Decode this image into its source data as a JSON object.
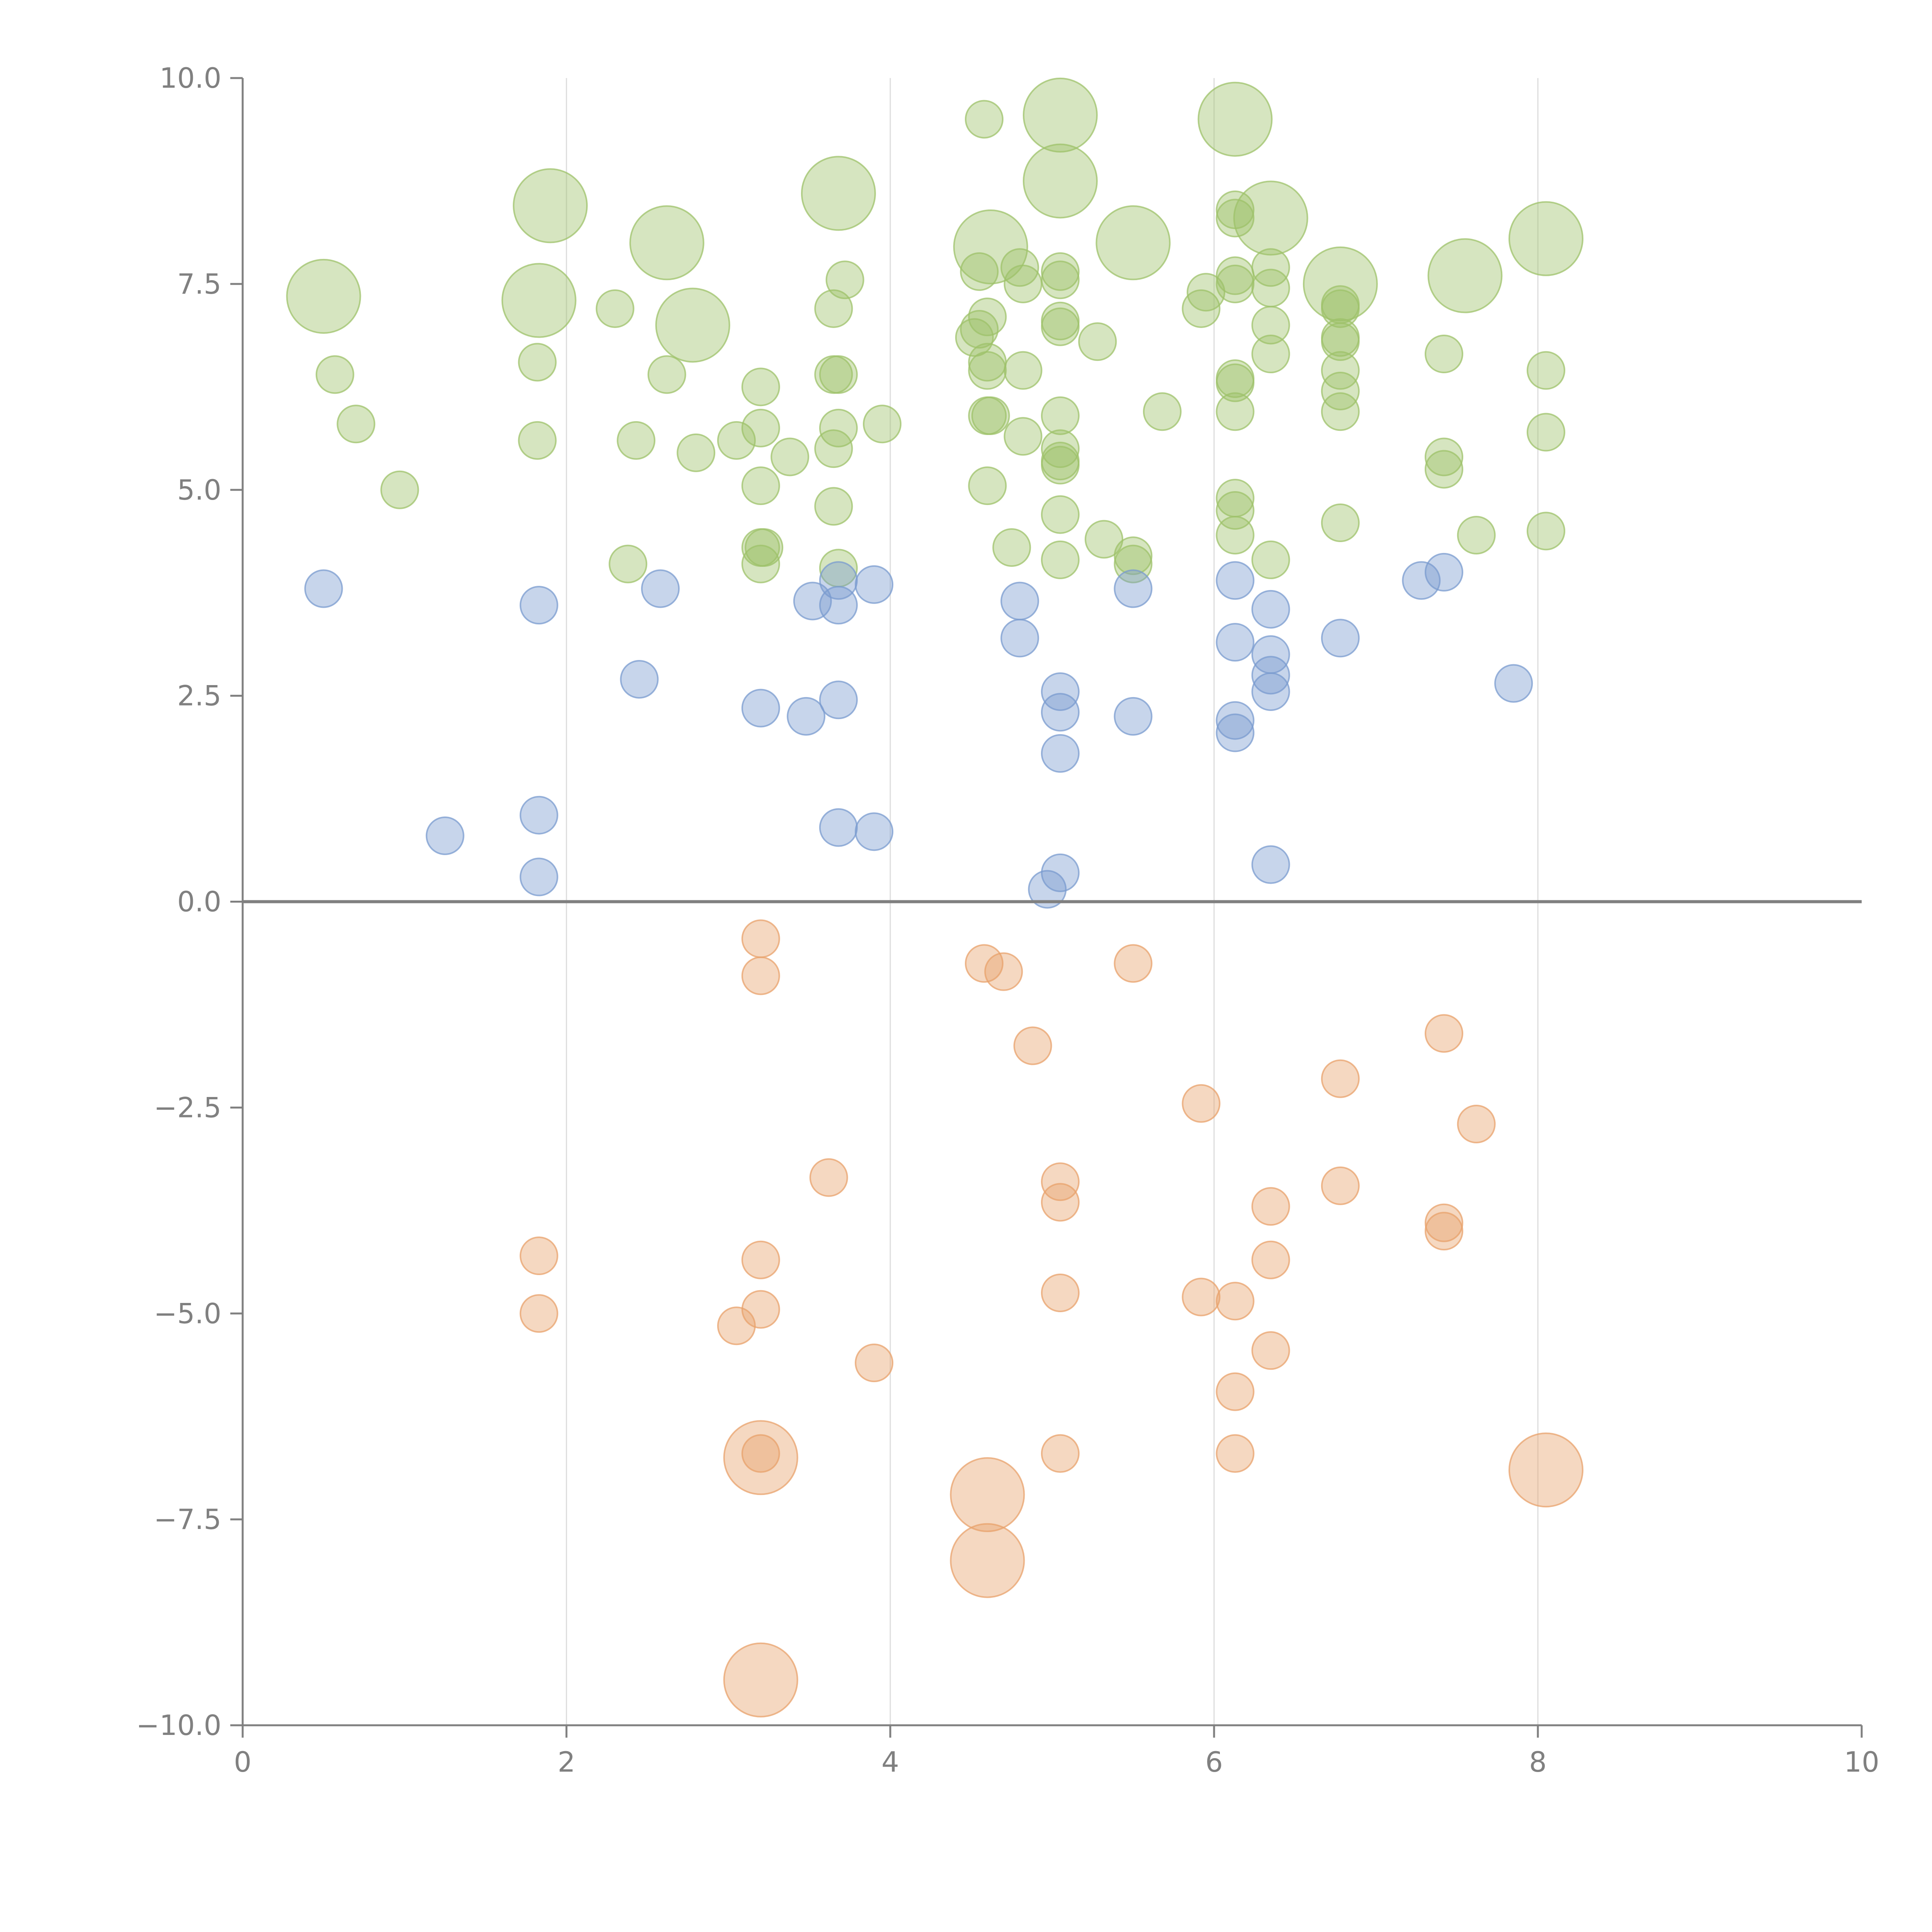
{
  "chart_data": {
    "type": "scatter",
    "title": "",
    "xlabel": "",
    "ylabel": "",
    "xlim": [
      0,
      10
    ],
    "ylim": [
      -10,
      10
    ],
    "x_ticks": [
      0,
      2,
      4,
      6,
      8,
      10
    ],
    "y_ticks": [
      -10,
      -7.5,
      -5,
      -2.5,
      0,
      2.5,
      5,
      7.5,
      10
    ],
    "x_tick_labels": [
      "0",
      "2",
      "4",
      "6",
      "8",
      "10"
    ],
    "y_tick_labels": [
      "−10.0",
      "−7.5",
      "−5.0",
      "−2.5",
      "0.0",
      "2.5",
      "5.0",
      "7.5",
      "10.0"
    ],
    "grid": "vertical",
    "reference_line": 0,
    "size_unit": "relative",
    "series": [
      {
        "name": "green",
        "color": "#9dc16a",
        "points": [
          [
            0.5,
            7.35,
            2
          ],
          [
            0.57,
            6.4,
            1
          ],
          [
            0.7,
            5.8,
            1
          ],
          [
            0.97,
            5.0,
            1
          ],
          [
            1.82,
            6.55,
            1
          ],
          [
            1.82,
            5.6,
            1
          ],
          [
            1.83,
            7.3,
            2
          ],
          [
            1.9,
            8.45,
            2
          ],
          [
            2.3,
            7.2,
            1
          ],
          [
            2.38,
            4.1,
            1
          ],
          [
            2.43,
            5.6,
            1
          ],
          [
            2.62,
            8.0,
            2
          ],
          [
            2.62,
            6.4,
            1
          ],
          [
            2.78,
            7.0,
            2
          ],
          [
            2.8,
            5.45,
            1
          ],
          [
            3.05,
            5.6,
            1
          ],
          [
            3.2,
            6.25,
            1
          ],
          [
            3.2,
            5.75,
            1
          ],
          [
            3.2,
            5.05,
            1
          ],
          [
            3.2,
            4.3,
            1
          ],
          [
            3.22,
            4.3,
            1
          ],
          [
            3.2,
            4.1,
            1
          ],
          [
            3.38,
            5.4,
            1
          ],
          [
            3.65,
            6.4,
            1
          ],
          [
            3.68,
            8.6,
            2
          ],
          [
            3.65,
            7.2,
            1
          ],
          [
            3.68,
            6.4,
            1
          ],
          [
            3.68,
            5.75,
            1
          ],
          [
            3.65,
            5.5,
            1
          ],
          [
            3.65,
            4.8,
            1
          ],
          [
            3.68,
            4.05,
            1
          ],
          [
            3.72,
            7.55,
            1
          ],
          [
            3.95,
            5.8,
            1
          ],
          [
            4.52,
            6.85,
            1
          ],
          [
            4.55,
            6.95,
            1
          ],
          [
            4.55,
            7.65,
            1
          ],
          [
            4.58,
            9.5,
            1
          ],
          [
            4.6,
            7.1,
            1
          ],
          [
            4.6,
            6.55,
            1
          ],
          [
            4.6,
            6.45,
            1
          ],
          [
            4.6,
            5.9,
            1
          ],
          [
            4.62,
            5.9,
            1
          ],
          [
            4.6,
            5.05,
            1
          ],
          [
            4.62,
            7.95,
            2
          ],
          [
            4.75,
            4.3,
            1
          ],
          [
            4.8,
            7.7,
            1
          ],
          [
            4.82,
            7.5,
            1
          ],
          [
            4.82,
            6.45,
            1
          ],
          [
            4.82,
            5.65,
            1
          ],
          [
            5.05,
            9.55,
            2
          ],
          [
            5.05,
            8.75,
            2
          ],
          [
            5.05,
            7.65,
            1
          ],
          [
            5.05,
            7.55,
            1
          ],
          [
            5.05,
            7.05,
            1
          ],
          [
            5.05,
            6.98,
            1
          ],
          [
            5.05,
            5.9,
            1
          ],
          [
            5.05,
            5.5,
            1
          ],
          [
            5.05,
            5.35,
            1
          ],
          [
            5.05,
            5.3,
            1
          ],
          [
            5.05,
            4.7,
            1
          ],
          [
            5.05,
            4.15,
            1
          ],
          [
            5.28,
            6.8,
            1
          ],
          [
            5.32,
            4.4,
            1
          ],
          [
            5.5,
            8.0,
            2
          ],
          [
            5.5,
            4.2,
            1
          ],
          [
            5.5,
            4.1,
            1
          ],
          [
            5.68,
            5.95,
            1
          ],
          [
            5.92,
            7.2,
            1
          ],
          [
            5.95,
            7.4,
            1
          ],
          [
            6.13,
            9.5,
            2
          ],
          [
            6.13,
            8.4,
            1
          ],
          [
            6.13,
            8.3,
            1
          ],
          [
            6.13,
            7.6,
            1
          ],
          [
            6.13,
            7.5,
            1
          ],
          [
            6.13,
            6.35,
            1
          ],
          [
            6.13,
            6.3,
            1
          ],
          [
            6.13,
            5.95,
            1
          ],
          [
            6.13,
            4.9,
            1
          ],
          [
            6.13,
            4.75,
            1
          ],
          [
            6.13,
            4.45,
            1
          ],
          [
            6.35,
            8.3,
            2
          ],
          [
            6.35,
            7.7,
            1
          ],
          [
            6.35,
            7.45,
            1
          ],
          [
            6.35,
            7.0,
            1
          ],
          [
            6.35,
            6.65,
            1
          ],
          [
            6.35,
            4.15,
            1
          ],
          [
            6.78,
            7.5,
            2
          ],
          [
            6.78,
            7.25,
            1
          ],
          [
            6.78,
            7.2,
            1
          ],
          [
            6.78,
            6.85,
            1
          ],
          [
            6.78,
            6.8,
            1
          ],
          [
            6.78,
            6.45,
            1
          ],
          [
            6.78,
            6.2,
            1
          ],
          [
            6.78,
            5.95,
            1
          ],
          [
            6.78,
            4.6,
            1
          ],
          [
            7.42,
            6.65,
            1
          ],
          [
            7.42,
            5.4,
            1
          ],
          [
            7.42,
            5.25,
            1
          ],
          [
            7.55,
            7.6,
            2
          ],
          [
            7.62,
            4.45,
            1
          ],
          [
            8.05,
            8.05,
            2
          ],
          [
            8.05,
            6.45,
            1
          ],
          [
            8.05,
            5.7,
            1
          ],
          [
            8.05,
            4.5,
            1
          ]
        ]
      },
      {
        "name": "blue",
        "color": "#7a9bcf",
        "points": [
          [
            0.5,
            3.8,
            1
          ],
          [
            1.25,
            0.8,
            1
          ],
          [
            1.83,
            3.6,
            1
          ],
          [
            1.83,
            1.05,
            1
          ],
          [
            1.83,
            0.3,
            1
          ],
          [
            2.45,
            2.7,
            1
          ],
          [
            2.58,
            3.8,
            1
          ],
          [
            3.2,
            2.35,
            1
          ],
          [
            3.48,
            2.25,
            1
          ],
          [
            3.52,
            3.65,
            1
          ],
          [
            3.68,
            3.9,
            1
          ],
          [
            3.68,
            3.6,
            1
          ],
          [
            3.68,
            2.45,
            1
          ],
          [
            3.68,
            0.9,
            1
          ],
          [
            3.9,
            3.85,
            1
          ],
          [
            3.9,
            0.85,
            1
          ],
          [
            4.8,
            3.65,
            1
          ],
          [
            4.8,
            3.2,
            1
          ],
          [
            4.97,
            0.15,
            1
          ],
          [
            5.05,
            2.55,
            1
          ],
          [
            5.05,
            2.3,
            1
          ],
          [
            5.05,
            1.8,
            1
          ],
          [
            5.05,
            0.35,
            1
          ],
          [
            5.5,
            3.8,
            1
          ],
          [
            5.5,
            2.25,
            1
          ],
          [
            6.13,
            3.9,
            1
          ],
          [
            6.13,
            3.15,
            1
          ],
          [
            6.13,
            2.2,
            1
          ],
          [
            6.13,
            2.05,
            1
          ],
          [
            6.35,
            3.55,
            1
          ],
          [
            6.35,
            3.0,
            1
          ],
          [
            6.35,
            2.75,
            1
          ],
          [
            6.35,
            2.55,
            1
          ],
          [
            6.35,
            0.45,
            1
          ],
          [
            6.78,
            3.2,
            1
          ],
          [
            7.28,
            3.9,
            1
          ],
          [
            7.42,
            4.0,
            1
          ],
          [
            7.85,
            2.65,
            1
          ]
        ]
      },
      {
        "name": "orange",
        "color": "#e8a26b",
        "points": [
          [
            1.83,
            -4.3,
            1
          ],
          [
            1.83,
            -5.0,
            1
          ],
          [
            3.05,
            -5.15,
            1
          ],
          [
            3.2,
            -0.45,
            1
          ],
          [
            3.2,
            -0.9,
            1
          ],
          [
            3.2,
            -4.35,
            1
          ],
          [
            3.2,
            -4.95,
            1
          ],
          [
            3.2,
            -6.7,
            1
          ],
          [
            3.2,
            -6.75,
            2
          ],
          [
            3.2,
            -9.45,
            2
          ],
          [
            3.62,
            -3.35,
            1
          ],
          [
            3.9,
            -5.6,
            1
          ],
          [
            4.58,
            -0.75,
            1
          ],
          [
            4.6,
            -7.2,
            2
          ],
          [
            4.6,
            -8.0,
            2
          ],
          [
            4.7,
            -0.85,
            1
          ],
          [
            4.88,
            -1.75,
            1
          ],
          [
            5.05,
            -3.4,
            1
          ],
          [
            5.05,
            -3.65,
            1
          ],
          [
            5.05,
            -4.75,
            1
          ],
          [
            5.05,
            -6.7,
            1
          ],
          [
            5.5,
            -0.75,
            1
          ],
          [
            5.92,
            -2.45,
            1
          ],
          [
            5.92,
            -4.8,
            1
          ],
          [
            6.13,
            -4.85,
            1
          ],
          [
            6.13,
            -5.95,
            1
          ],
          [
            6.13,
            -6.7,
            1
          ],
          [
            6.35,
            -3.7,
            1
          ],
          [
            6.35,
            -4.35,
            1
          ],
          [
            6.35,
            -5.45,
            1
          ],
          [
            6.78,
            -2.15,
            1
          ],
          [
            6.78,
            -3.45,
            1
          ],
          [
            7.42,
            -1.6,
            1
          ],
          [
            7.42,
            -3.9,
            1
          ],
          [
            7.42,
            -4.0,
            1
          ],
          [
            7.62,
            -2.7,
            1
          ],
          [
            8.05,
            -6.9,
            2
          ]
        ]
      }
    ]
  }
}
